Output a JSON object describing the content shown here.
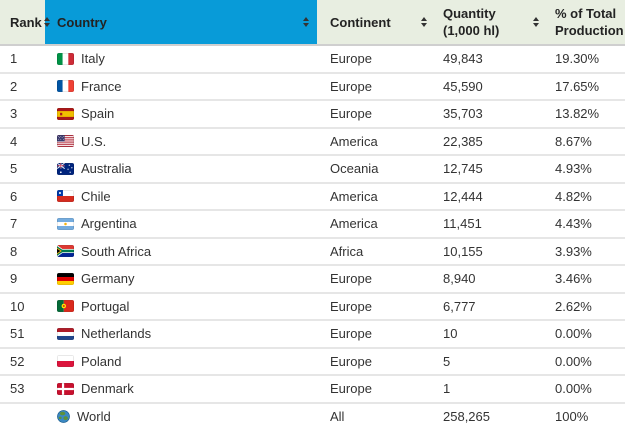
{
  "table": {
    "columns": [
      {
        "key": "rank",
        "label": "Rank",
        "sortable": true
      },
      {
        "key": "country",
        "label": "Country",
        "sortable": true,
        "highlighted": true,
        "highlight_color": "#089bd8"
      },
      {
        "key": "continent",
        "label": "Continent",
        "sortable": true
      },
      {
        "key": "quantity",
        "label": "Quantity (1,000 hl)",
        "label_lines": [
          "Quantity",
          "(1,000 hl)"
        ],
        "sortable": true
      },
      {
        "key": "percent",
        "label": "% of Total Production",
        "label_lines": [
          "% of Total",
          "Production"
        ],
        "sortable": false
      }
    ],
    "rows": [
      {
        "rank": "1",
        "flag": "italy",
        "country": "Italy",
        "continent": "Europe",
        "quantity": "49,843",
        "percent": "19.30%"
      },
      {
        "rank": "2",
        "flag": "france",
        "country": "France",
        "continent": "Europe",
        "quantity": "45,590",
        "percent": "17.65%"
      },
      {
        "rank": "3",
        "flag": "spain",
        "country": "Spain",
        "continent": "Europe",
        "quantity": "35,703",
        "percent": "13.82%"
      },
      {
        "rank": "4",
        "flag": "us",
        "country": "U.S.",
        "continent": "America",
        "quantity": "22,385",
        "percent": "8.67%"
      },
      {
        "rank": "5",
        "flag": "australia",
        "country": "Australia",
        "continent": "Oceania",
        "quantity": "12,745",
        "percent": "4.93%"
      },
      {
        "rank": "6",
        "flag": "chile",
        "country": "Chile",
        "continent": "America",
        "quantity": "12,444",
        "percent": "4.82%"
      },
      {
        "rank": "7",
        "flag": "argentina",
        "country": "Argentina",
        "continent": "America",
        "quantity": "11,451",
        "percent": "4.43%"
      },
      {
        "rank": "8",
        "flag": "south-africa",
        "country": "South Africa",
        "continent": "Africa",
        "quantity": "10,155",
        "percent": "3.93%"
      },
      {
        "rank": "9",
        "flag": "germany",
        "country": "Germany",
        "continent": "Europe",
        "quantity": "8,940",
        "percent": "3.46%"
      },
      {
        "rank": "10",
        "flag": "portugal",
        "country": "Portugal",
        "continent": "Europe",
        "quantity": "6,777",
        "percent": "2.62%"
      },
      {
        "rank": "51",
        "flag": "netherlands",
        "country": "Netherlands",
        "continent": "Europe",
        "quantity": "10",
        "percent": "0.00%"
      },
      {
        "rank": "52",
        "flag": "poland",
        "country": "Poland",
        "continent": "Europe",
        "quantity": "5",
        "percent": "0.00%"
      },
      {
        "rank": "53",
        "flag": "denmark",
        "country": "Denmark",
        "continent": "Europe",
        "quantity": "1",
        "percent": "0.00%"
      },
      {
        "rank": "",
        "flag": "world",
        "country": "World",
        "continent": "All",
        "quantity": "258,265",
        "percent": "100%"
      }
    ]
  },
  "colors": {
    "header_bg": "#e8eee1",
    "sorted_column_bg": "#089bd8",
    "header_text": "#232323",
    "body_text": "#333333",
    "row_separator": "#e6e6e6"
  }
}
